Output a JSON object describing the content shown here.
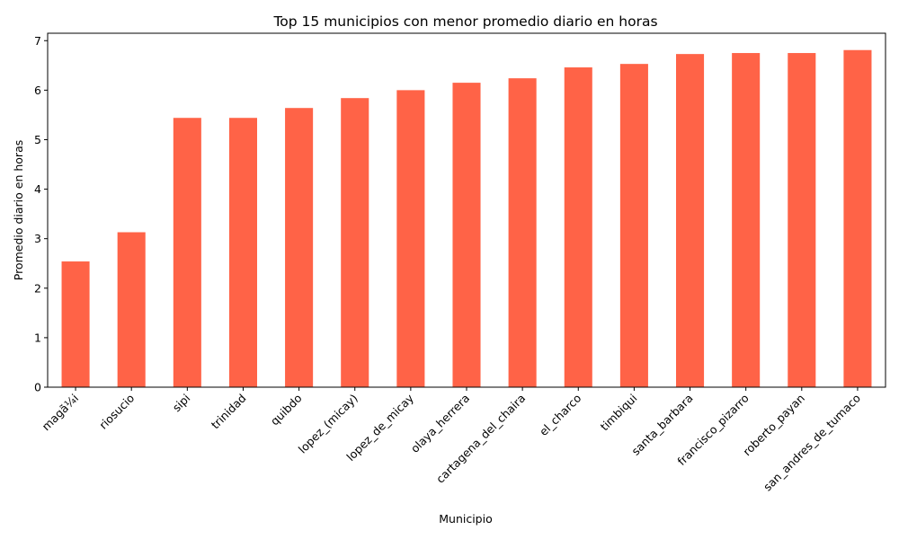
{
  "chart_data": {
    "type": "bar",
    "title": "Top 15 municipios con menor promedio diario en horas",
    "xlabel": "Municipio",
    "ylabel": "Promedio diario en horas",
    "categories": [
      "magã¼i",
      "riosucio",
      "sipi",
      "trinidad",
      "quibdo",
      "lopez_(micay)",
      "lopez_de_micay",
      "olaya_herrera",
      "cartagena_del_chaira",
      "el_charco",
      "timbiqui",
      "santa_barbara",
      "francisco_pizarro",
      "roberto_payan",
      "san_andres_de_tumaco"
    ],
    "values": [
      2.54,
      3.13,
      5.44,
      5.44,
      5.64,
      5.84,
      6.0,
      6.15,
      6.24,
      6.46,
      6.53,
      6.73,
      6.75,
      6.75,
      6.81
    ],
    "ylim": [
      0,
      7.15
    ],
    "yticks": [
      "0",
      "1",
      "2",
      "3",
      "4",
      "5",
      "6",
      "7"
    ],
    "grid": false,
    "bar_color": "#ff6347"
  }
}
